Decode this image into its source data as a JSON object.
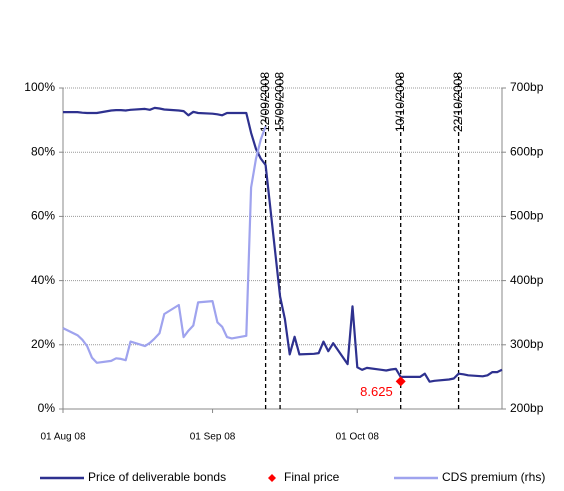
{
  "chart_data": {
    "type": "line",
    "xlim": [
      "2008-08-01",
      "2008-10-31"
    ],
    "xticks": [
      {
        "value": "2008-08-01",
        "label": "01 Aug 08"
      },
      {
        "value": "2008-09-01",
        "label": "01 Sep 08"
      },
      {
        "value": "2008-10-01",
        "label": "01 Oct 08"
      }
    ],
    "ylim": [
      0,
      100
    ],
    "yticks": [
      {
        "value": 0,
        "label": "0%"
      },
      {
        "value": 20,
        "label": "20%"
      },
      {
        "value": 40,
        "label": "40%"
      },
      {
        "value": 60,
        "label": "60%"
      },
      {
        "value": 80,
        "label": "80%"
      },
      {
        "value": 100,
        "label": "100%"
      }
    ],
    "y2lim": [
      200,
      700
    ],
    "y2ticks": [
      {
        "value": 200,
        "label": "200bp"
      },
      {
        "value": 300,
        "label": "300bp"
      },
      {
        "value": 400,
        "label": "400bp"
      },
      {
        "value": 500,
        "label": "500bp"
      },
      {
        "value": 600,
        "label": "600bp"
      },
      {
        "value": 700,
        "label": "700bp"
      }
    ],
    "grid": true,
    "annotations": [
      {
        "x": "2008-09-12",
        "label": "12/09/2008"
      },
      {
        "x": "2008-09-15",
        "label": "15/09/2008"
      },
      {
        "x": "2008-10-10",
        "label": "10/10/2008"
      },
      {
        "x": "2008-10-22",
        "label": "22/10/2008"
      }
    ],
    "series": [
      {
        "name": "Price of deliverable bonds",
        "color": "#2e318f",
        "axis": "y",
        "x": [
          "2008-08-01",
          "2008-08-04",
          "2008-08-05",
          "2008-08-06",
          "2008-08-07",
          "2008-08-08",
          "2008-08-11",
          "2008-08-12",
          "2008-08-13",
          "2008-08-14",
          "2008-08-15",
          "2008-08-18",
          "2008-08-19",
          "2008-08-20",
          "2008-08-21",
          "2008-08-22",
          "2008-08-25",
          "2008-08-26",
          "2008-08-27",
          "2008-08-28",
          "2008-08-29",
          "2008-09-01",
          "2008-09-02",
          "2008-09-03",
          "2008-09-04",
          "2008-09-05",
          "2008-09-08",
          "2008-09-09",
          "2008-09-10",
          "2008-09-11",
          "2008-09-12",
          "2008-09-15",
          "2008-09-16",
          "2008-09-17",
          "2008-09-18",
          "2008-09-19",
          "2008-09-22",
          "2008-09-23",
          "2008-09-24",
          "2008-09-25",
          "2008-09-26",
          "2008-09-29",
          "2008-09-30",
          "2008-10-01",
          "2008-10-02",
          "2008-10-03",
          "2008-10-06",
          "2008-10-07",
          "2008-10-08",
          "2008-10-09",
          "2008-10-10",
          "2008-10-13",
          "2008-10-14",
          "2008-10-15",
          "2008-10-16",
          "2008-10-17",
          "2008-10-20",
          "2008-10-21",
          "2008-10-22",
          "2008-10-23",
          "2008-10-24",
          "2008-10-27",
          "2008-10-28",
          "2008-10-29",
          "2008-10-30",
          "2008-10-31"
        ],
        "values": [
          92.5,
          92.5,
          92.3,
          92.2,
          92.2,
          92.2,
          93.0,
          93.1,
          93.1,
          93.0,
          93.2,
          93.5,
          93.2,
          93.8,
          93.6,
          93.3,
          93.0,
          92.8,
          91.5,
          92.6,
          92.2,
          92.0,
          91.8,
          91.5,
          92.2,
          92.2,
          92.2,
          86,
          81,
          78,
          76,
          35,
          28,
          17,
          22.5,
          17,
          17.2,
          17.4,
          21,
          18,
          20.5,
          14,
          32,
          13,
          12.2,
          12.8,
          12.2,
          12,
          12.3,
          12.5,
          10,
          10,
          10,
          11,
          8.5,
          8.8,
          9.2,
          9.5,
          11,
          10.8,
          10.5,
          10.2,
          10.5,
          11.5,
          11.5,
          12.2
        ]
      },
      {
        "name": "Final price",
        "color": "#ff0000",
        "type": "marker",
        "x": [
          "2008-10-10"
        ],
        "values": [
          8.625
        ]
      },
      {
        "name": "CDS premium (rhs)",
        "color": "#9fa3ee",
        "axis": "y2",
        "x": [
          "2008-08-01",
          "2008-08-04",
          "2008-08-05",
          "2008-08-06",
          "2008-08-07",
          "2008-08-08",
          "2008-08-11",
          "2008-08-12",
          "2008-08-13",
          "2008-08-14",
          "2008-08-15",
          "2008-08-18",
          "2008-08-19",
          "2008-08-20",
          "2008-08-21",
          "2008-08-22",
          "2008-08-25",
          "2008-08-26",
          "2008-08-27",
          "2008-08-28",
          "2008-08-29",
          "2008-09-01",
          "2008-09-02",
          "2008-09-03",
          "2008-09-04",
          "2008-09-05",
          "2008-09-08",
          "2008-09-09",
          "2008-09-10",
          "2008-09-11",
          "2008-09-12"
        ],
        "values": [
          326,
          315,
          308,
          298,
          280,
          272,
          275,
          279,
          278,
          276,
          305,
          298,
          303,
          310,
          318,
          348,
          362,
          312,
          322,
          330,
          366,
          368,
          335,
          328,
          312,
          310,
          314,
          545,
          590,
          620,
          640
        ]
      }
    ]
  }
}
